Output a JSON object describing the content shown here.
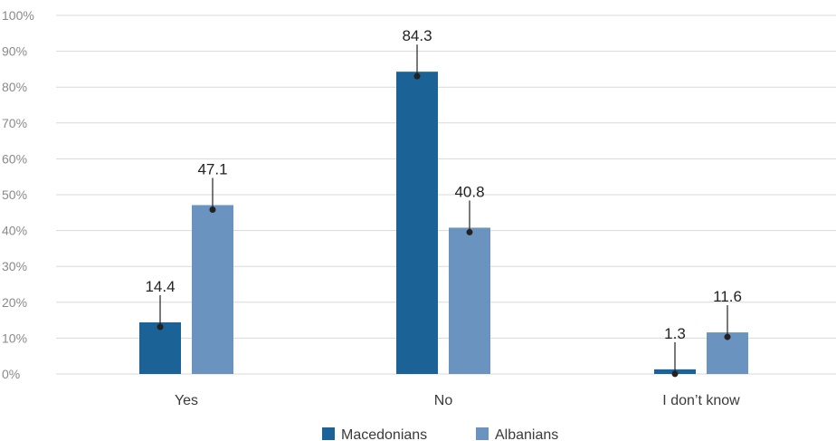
{
  "chart_data": {
    "type": "bar",
    "categories": [
      "Yes",
      "No",
      "I don’t know"
    ],
    "series": [
      {
        "name": "Macedonians",
        "color": "#1b6396",
        "values": [
          14.4,
          84.3,
          1.3
        ]
      },
      {
        "name": "Albanians",
        "color": "#6a93bf",
        "values": [
          47.1,
          40.8,
          11.6
        ]
      }
    ],
    "ylim": [
      0,
      100
    ],
    "yticks": [
      0,
      10,
      20,
      30,
      40,
      50,
      60,
      70,
      80,
      90,
      100
    ],
    "ytick_labels": [
      "0%",
      "10%",
      "20%",
      "30%",
      "40%",
      "50%",
      "60%",
      "70%",
      "80%",
      "90%",
      "100%"
    ],
    "grid": true,
    "legend_position": "bottom-center"
  }
}
